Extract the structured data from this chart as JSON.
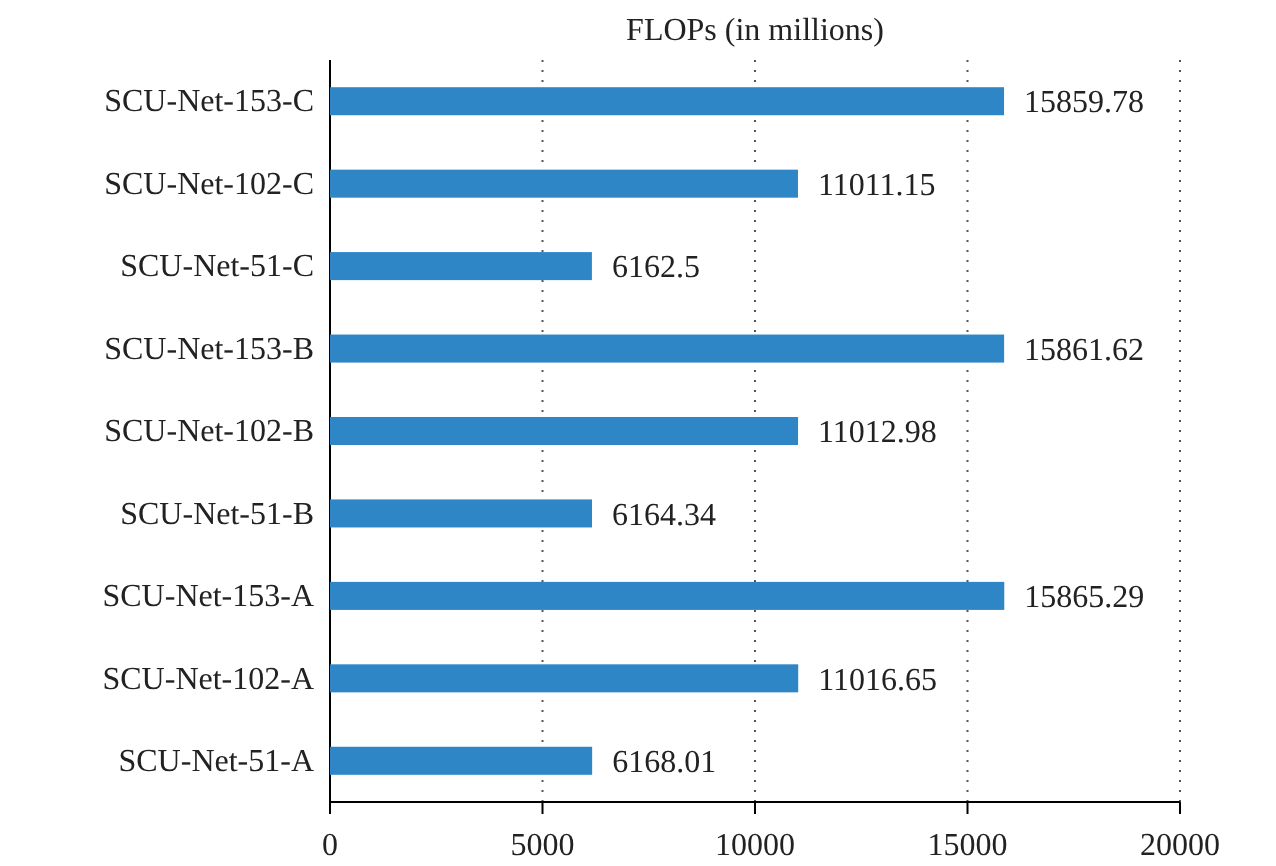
{
  "chart_data": {
    "type": "bar",
    "orientation": "horizontal",
    "title": "FLOPs (in millions)",
    "categories": [
      "SCU-Net-153-C",
      "SCU-Net-102-C",
      "SCU-Net-51-C",
      "SCU-Net-153-B",
      "SCU-Net-102-B",
      "SCU-Net-51-B",
      "SCU-Net-153-A",
      "SCU-Net-102-A",
      "SCU-Net-51-A"
    ],
    "values": [
      15859.78,
      11011.15,
      6162.5,
      15861.62,
      11012.98,
      6164.34,
      15865.29,
      11016.65,
      6168.01
    ],
    "color": "#2f86c6",
    "xlim": [
      0,
      20000
    ],
    "xticks": [
      0,
      5000,
      10000,
      15000,
      20000
    ],
    "grid": "x",
    "data_labels": true
  }
}
